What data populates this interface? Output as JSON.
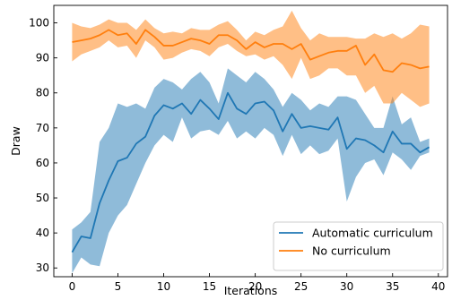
{
  "chart_data": {
    "type": "line",
    "xlabel": "Iterations",
    "ylabel": "Draw",
    "xlim": [
      -2,
      41
    ],
    "ylim": [
      27.5,
      105
    ],
    "xticks": [
      0,
      5,
      10,
      15,
      20,
      25,
      30,
      35,
      40
    ],
    "yticks": [
      30,
      40,
      50,
      60,
      70,
      80,
      90,
      100
    ],
    "grid": false,
    "legend_position": "lower-right",
    "x": [
      0,
      1,
      2,
      3,
      4,
      5,
      6,
      7,
      8,
      9,
      10,
      11,
      12,
      13,
      14,
      15,
      16,
      17,
      18,
      19,
      20,
      21,
      22,
      23,
      24,
      25,
      26,
      27,
      28,
      29,
      30,
      31,
      32,
      33,
      34,
      35,
      36,
      37,
      38,
      39
    ],
    "series": [
      {
        "name": "Automatic curriculum",
        "color": "#1f77b4",
        "band_color": "#1f77b4",
        "values": [
          34.5,
          39,
          38.5,
          48.5,
          55,
          60.5,
          61.5,
          65.5,
          67.5,
          73.5,
          76.5,
          75.5,
          77,
          74,
          78,
          75.5,
          72.5,
          80,
          75.5,
          74,
          77,
          77.5,
          75,
          69,
          74,
          70,
          70.5,
          70,
          69.5,
          73,
          64,
          67,
          66.5,
          65,
          63,
          69,
          65.5,
          65.5,
          63,
          64.5
        ],
        "lower": [
          28.5,
          33,
          31,
          30.5,
          40,
          45,
          48,
          54,
          60,
          65,
          68,
          66,
          73,
          67,
          69,
          69.5,
          68,
          72,
          67,
          69,
          67,
          70,
          68,
          62,
          68,
          62.5,
          65,
          62.5,
          63.5,
          67,
          49,
          56,
          60,
          61,
          56.5,
          63,
          61,
          58,
          62,
          63
        ],
        "upper": [
          41,
          43,
          46,
          66,
          70,
          77,
          76,
          77,
          75.5,
          81.5,
          84,
          83,
          81,
          84,
          86,
          83,
          77,
          87,
          85,
          83,
          86,
          84,
          81,
          76,
          80,
          78,
          75,
          77,
          76,
          79,
          79,
          78,
          74,
          70,
          70,
          79,
          71,
          73,
          66,
          67
        ]
      },
      {
        "name": "No curriculum",
        "color": "#ff7f0e",
        "band_color": "#ff7f0e",
        "values": [
          94.5,
          95,
          95.5,
          96.5,
          98,
          96.5,
          97,
          94,
          98,
          96,
          93.5,
          93.5,
          94.5,
          95.5,
          95,
          94,
          96.5,
          96.5,
          95,
          92.5,
          94.5,
          93,
          94,
          94,
          92.5,
          94,
          89.5,
          90.5,
          91.5,
          92,
          92,
          93.5,
          88,
          91,
          86.5,
          86,
          88.5,
          88,
          87,
          87.5
        ],
        "lower": [
          89,
          91,
          92,
          93,
          95,
          93,
          93.5,
          90,
          95,
          93,
          89.5,
          90,
          91.5,
          92.5,
          92,
          90.5,
          93,
          94,
          92,
          90.5,
          91,
          89.5,
          90.5,
          88,
          84,
          90,
          84,
          85,
          87,
          87,
          85,
          85,
          80,
          82,
          77,
          77,
          80,
          78,
          76,
          77
        ],
        "upper": [
          100,
          99,
          98.5,
          99.5,
          101,
          100,
          100,
          98,
          101,
          98.5,
          97,
          97.5,
          97,
          98.5,
          98,
          98,
          99.5,
          100.5,
          98,
          95,
          97.5,
          96.5,
          98,
          99,
          103.5,
          98.5,
          95,
          97,
          96,
          96,
          96,
          95.5,
          95.5,
          97,
          96,
          97,
          95.5,
          97,
          99.5,
          99
        ]
      }
    ]
  }
}
